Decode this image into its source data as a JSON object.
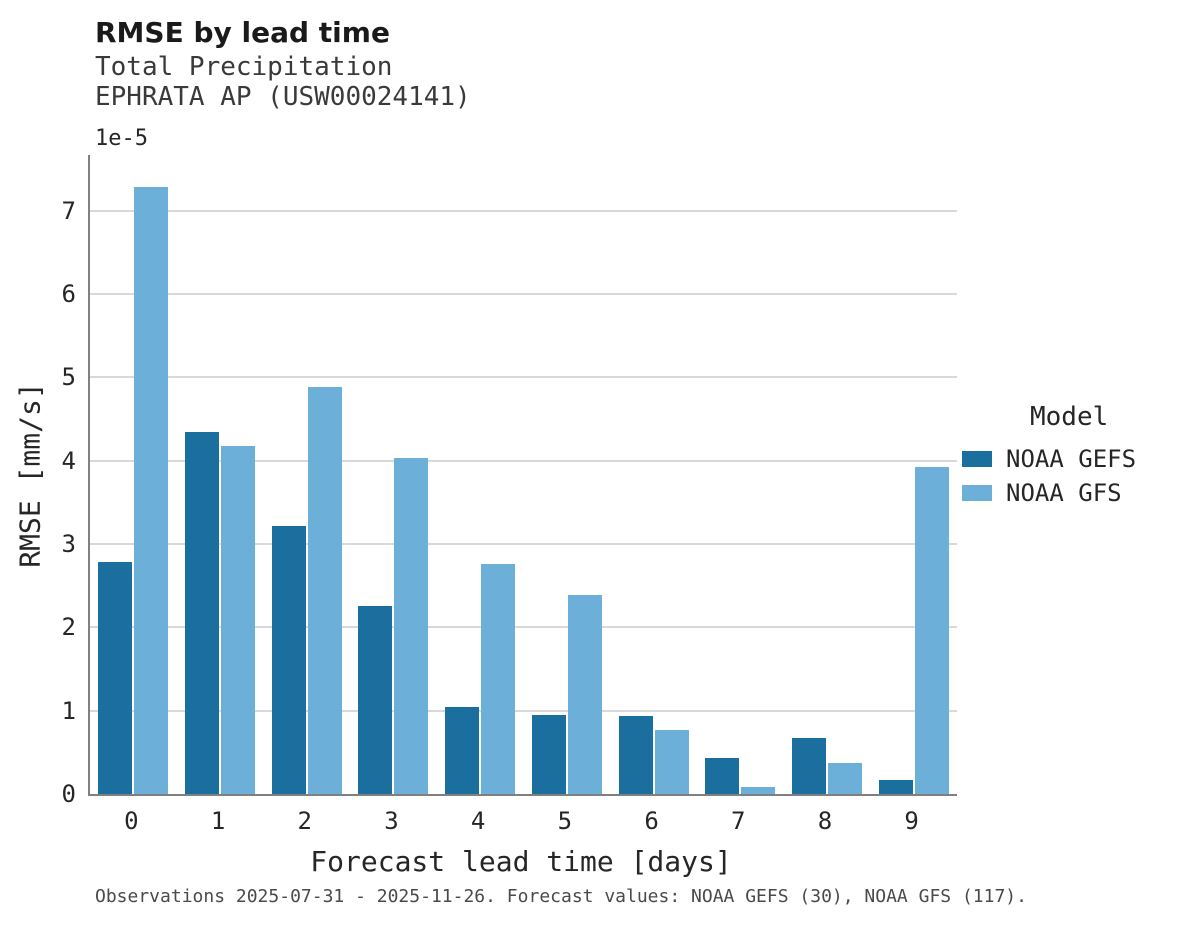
{
  "chart_data": {
    "type": "bar",
    "title": "RMSE by lead time",
    "subtitle_variable": "Total Precipitation",
    "subtitle_station": "EPHRATA AP (USW00024141)",
    "y_offset_label": "1e-5",
    "xlabel": "Forecast lead time [days]",
    "ylabel": "RMSE [mm/s]",
    "categories": [
      "0",
      "1",
      "2",
      "3",
      "4",
      "5",
      "6",
      "7",
      "8",
      "9"
    ],
    "series": [
      {
        "name": "NOAA GEFS",
        "color": "#1a6f9e",
        "values": [
          2.78,
          4.35,
          3.22,
          2.26,
          1.05,
          0.95,
          0.94,
          0.43,
          0.67,
          0.17
        ]
      },
      {
        "name": "NOAA GFS",
        "color": "#6cb0d9",
        "values": [
          7.29,
          4.18,
          4.88,
          4.03,
          2.76,
          2.39,
          0.77,
          0.09,
          0.37,
          3.92
        ]
      }
    ],
    "yticks": [
      0,
      1,
      2,
      3,
      4,
      5,
      6,
      7
    ],
    "ylim": [
      0,
      7.67
    ],
    "grid": "horizontal",
    "legend_title": "Model",
    "legend_position": "right",
    "caption": "Observations 2025-07-31 - 2025-11-26. Forecast values: NOAA GEFS (30), NOAA GFS (117)."
  }
}
